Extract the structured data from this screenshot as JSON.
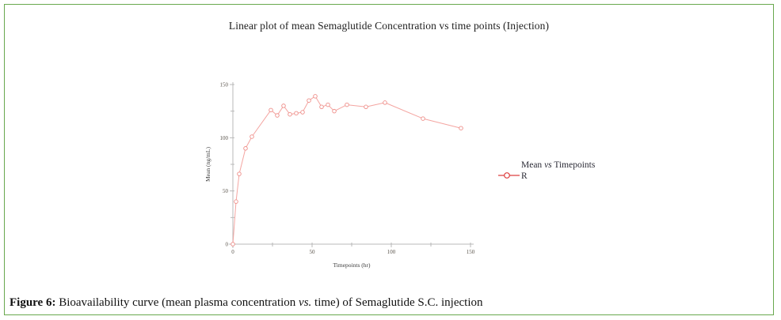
{
  "colors": {
    "border_green": "#69a84e",
    "axis": "#b9b9b9",
    "line": "#f4a5a1",
    "marker": "#ee8d88",
    "legend_symbol": "#de4040",
    "tick_text": "#5c564e"
  },
  "legend": {
    "line1_pre": "Mean ",
    "line1_vs": "vs",
    "line1_post": " Timepoints",
    "line2": "R"
  },
  "caption": {
    "label": "Figure 6:",
    "pre": " Bioavailability curve (mean plasma concentration ",
    "vs": "vs.",
    "post": " time) of Semaglutide S.C. injection"
  },
  "chart_data": {
    "type": "line",
    "title": "Linear plot of mean Semaglutide Concentration vs time points (Injection)",
    "xlabel": "Timepoints (hr)",
    "ylabel": "Mean (ng/mL)",
    "xlim": [
      0,
      150
    ],
    "ylim": [
      0,
      150
    ],
    "x_ticks": [
      0,
      50,
      100,
      150
    ],
    "x_minor_ticks": [
      25,
      75,
      125
    ],
    "y_ticks": [
      0,
      50,
      100,
      150
    ],
    "y_minor_ticks": [
      25,
      75,
      125
    ],
    "grid": false,
    "legend_position": "right",
    "series": [
      {
        "name": "Mean vs Timepoints R",
        "marker": "open-circle",
        "x": [
          0,
          2,
          4,
          8,
          12,
          24,
          28,
          32,
          36,
          40,
          44,
          48,
          52,
          56,
          60,
          64,
          72,
          84,
          96,
          120,
          144
        ],
        "y": [
          0,
          40,
          66,
          90,
          101,
          126,
          121,
          130,
          122,
          123,
          124,
          135,
          139,
          129,
          131,
          125,
          131,
          129,
          133,
          118,
          109
        ]
      }
    ]
  }
}
